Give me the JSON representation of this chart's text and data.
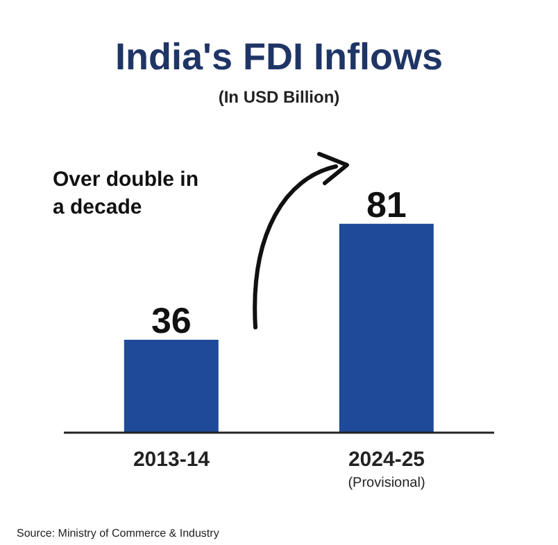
{
  "chart_data": {
    "type": "bar",
    "title": "India's FDI Inflows",
    "subtitle": "(In USD Billion)",
    "categories": [
      "2013-14",
      "2024-25\n(Provisional)"
    ],
    "values": [
      36,
      81
    ],
    "color": "#1f4a99",
    "data_labels": true,
    "annotations": [
      "Over double in\na decade",
      "Source: Ministry of Commerce & Industry"
    ]
  }
}
